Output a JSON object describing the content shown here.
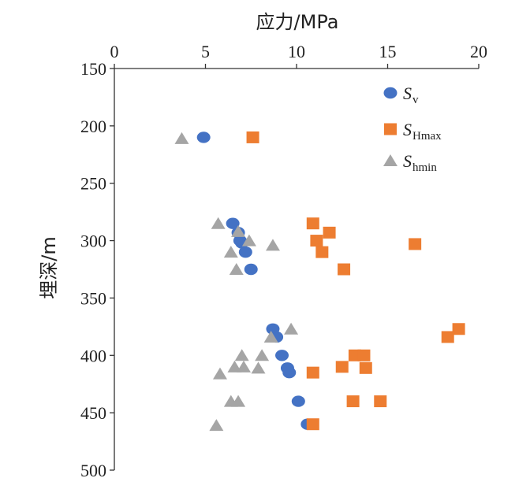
{
  "chart_data": {
    "type": "scatter",
    "xlabel": "应力/MPa",
    "ylabel": "埋深/m",
    "xlim": [
      0,
      20
    ],
    "ylim": [
      150,
      500
    ],
    "y_reversed": true,
    "x_axis_position": "top",
    "x_ticks": [
      0,
      5,
      10,
      15,
      20
    ],
    "y_ticks": [
      150,
      200,
      250,
      300,
      350,
      400,
      450,
      500
    ],
    "grid": false,
    "legend_position": "top-right",
    "series": [
      {
        "name": "S_v",
        "legend_main": "S",
        "legend_sub": "v",
        "marker": "circle",
        "color": "#4472c4",
        "points": [
          [
            4.9,
            210
          ],
          [
            6.5,
            285
          ],
          [
            6.8,
            293
          ],
          [
            6.9,
            300
          ],
          [
            7.0,
            302
          ],
          [
            7.2,
            310
          ],
          [
            7.5,
            325
          ],
          [
            8.7,
            377
          ],
          [
            8.9,
            384
          ],
          [
            9.2,
            400
          ],
          [
            9.5,
            411
          ],
          [
            9.6,
            415
          ],
          [
            10.1,
            440
          ],
          [
            10.6,
            460
          ]
        ]
      },
      {
        "name": "S_Hmax",
        "legend_main": "S",
        "legend_sub": "Hmax",
        "marker": "square",
        "color": "#ed7d31",
        "points": [
          [
            7.6,
            210
          ],
          [
            10.9,
            285
          ],
          [
            11.1,
            300
          ],
          [
            11.8,
            293
          ],
          [
            11.4,
            310
          ],
          [
            12.6,
            325
          ],
          [
            16.5,
            303
          ],
          [
            18.9,
            377
          ],
          [
            18.3,
            384
          ],
          [
            13.2,
            400
          ],
          [
            13.7,
            400
          ],
          [
            12.5,
            410
          ],
          [
            13.8,
            411
          ],
          [
            10.9,
            415
          ],
          [
            13.1,
            440
          ],
          [
            14.6,
            440
          ],
          [
            10.9,
            460
          ]
        ]
      },
      {
        "name": "S_hmin",
        "legend_main": "S",
        "legend_sub": "hmin",
        "marker": "triangle",
        "color": "#a5a5a5",
        "points": [
          [
            3.7,
            211
          ],
          [
            5.7,
            285
          ],
          [
            6.8,
            292
          ],
          [
            7.4,
            300
          ],
          [
            6.4,
            310
          ],
          [
            6.7,
            325
          ],
          [
            8.7,
            304
          ],
          [
            9.7,
            377
          ],
          [
            8.6,
            384
          ],
          [
            7.0,
            400
          ],
          [
            8.1,
            400
          ],
          [
            6.6,
            410
          ],
          [
            7.1,
            410
          ],
          [
            7.9,
            411
          ],
          [
            5.8,
            416
          ],
          [
            6.4,
            440
          ],
          [
            6.8,
            440
          ],
          [
            5.6,
            461
          ]
        ]
      }
    ]
  }
}
